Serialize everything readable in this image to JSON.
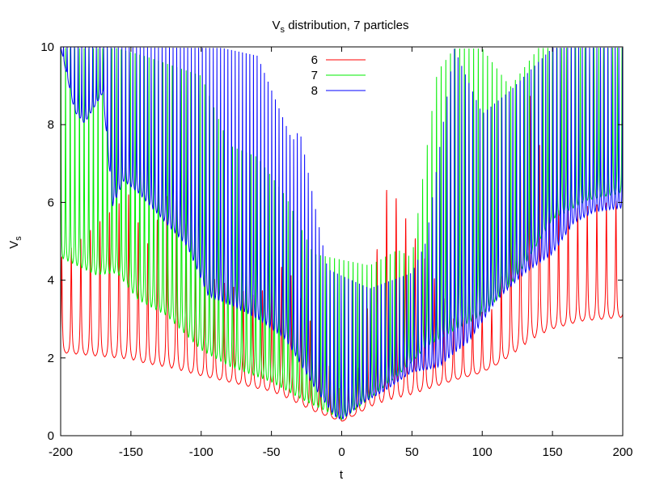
{
  "chart_data": {
    "type": "line",
    "title": {
      "main": "V",
      "sub": "s",
      "rest": " distribution, 7 particles"
    },
    "xlabel": "t",
    "ylabel": {
      "main": "V",
      "sub": "s"
    },
    "xlim": [
      -200,
      200
    ],
    "ylim": [
      0,
      10
    ],
    "xticks": [
      -200,
      -150,
      -100,
      -50,
      0,
      50,
      100,
      150,
      200
    ],
    "yticks": [
      0,
      2,
      4,
      6,
      8,
      10
    ],
    "grid": false,
    "legend_position": "top-center",
    "series": [
      {
        "name": "6",
        "color": "#ff0000",
        "baseline": [
          [
            -200,
            2.1
          ],
          [
            -150,
            1.9
          ],
          [
            -100,
            1.5
          ],
          [
            -50,
            1.1
          ],
          [
            -20,
            0.6
          ],
          [
            0,
            0.35
          ],
          [
            20,
            0.7
          ],
          [
            50,
            1.0
          ],
          [
            80,
            1.4
          ],
          [
            100,
            1.6
          ],
          [
            120,
            2.0
          ],
          [
            140,
            2.5
          ],
          [
            150,
            2.7
          ],
          [
            170,
            2.9
          ],
          [
            200,
            3.0
          ]
        ],
        "peaks": [
          [
            -200,
            4.6
          ],
          [
            -150,
            6.3
          ],
          [
            -140,
            4.8
          ],
          [
            -120,
            6.6
          ],
          [
            -100,
            4.2
          ],
          [
            -60,
            3.6
          ],
          [
            -40,
            4.5
          ],
          [
            0,
            1.05
          ],
          [
            10,
            1.4
          ],
          [
            33,
            6.6
          ],
          [
            80,
            3.0
          ],
          [
            110,
            3.3
          ],
          [
            134,
            8.8
          ],
          [
            150,
            5.8
          ],
          [
            170,
            5.9
          ],
          [
            200,
            6.1
          ]
        ]
      },
      {
        "name": "7",
        "color": "#00ee00",
        "baseline": [
          [
            -200,
            4.5
          ],
          [
            -175,
            4.05
          ],
          [
            -160,
            4.1
          ],
          [
            -145,
            3.4
          ],
          [
            -125,
            3.0
          ],
          [
            -100,
            2.1
          ],
          [
            -80,
            1.7
          ],
          [
            -50,
            1.3
          ],
          [
            -30,
            0.9
          ],
          [
            -10,
            0.55
          ],
          [
            0,
            0.35
          ],
          [
            20,
            0.9
          ],
          [
            40,
            1.5
          ],
          [
            60,
            2.2
          ],
          [
            80,
            2.6
          ],
          [
            100,
            3.0
          ],
          [
            120,
            3.8
          ],
          [
            130,
            4.3
          ],
          [
            150,
            5.5
          ],
          [
            175,
            6.0
          ],
          [
            200,
            6.2
          ]
        ],
        "peaks": [
          [
            -200,
            10
          ],
          [
            -160,
            10
          ],
          [
            -140,
            9.8
          ],
          [
            -100,
            9.3
          ],
          [
            -80,
            7.5
          ],
          [
            -60,
            7.2
          ],
          [
            -40,
            6.2
          ],
          [
            -20,
            4.7
          ],
          [
            20,
            4.4
          ],
          [
            40,
            4.8
          ],
          [
            50,
            4.6
          ],
          [
            68,
            9.4
          ],
          [
            80,
            10
          ],
          [
            100,
            10
          ],
          [
            120,
            9.0
          ],
          [
            140,
            10
          ],
          [
            200,
            10
          ]
        ]
      },
      {
        "name": "8",
        "color": "#0000ff",
        "baseline": [
          [
            -200,
            10
          ],
          [
            -190,
            8.3
          ],
          [
            -183,
            8.0
          ],
          [
            -170,
            8.8
          ],
          [
            -163,
            5.85
          ],
          [
            -155,
            6.5
          ],
          [
            -145,
            6.2
          ],
          [
            -130,
            5.6
          ],
          [
            -110,
            4.8
          ],
          [
            -95,
            3.5
          ],
          [
            -75,
            3.2
          ],
          [
            -55,
            2.8
          ],
          [
            -40,
            2.4
          ],
          [
            -20,
            1.2
          ],
          [
            -5,
            0.45
          ],
          [
            0,
            0.35
          ],
          [
            15,
            0.8
          ],
          [
            30,
            1.1
          ],
          [
            50,
            1.6
          ],
          [
            70,
            1.7
          ],
          [
            90,
            2.3
          ],
          [
            110,
            3.4
          ],
          [
            130,
            4.1
          ],
          [
            150,
            4.6
          ],
          [
            165,
            5.4
          ],
          [
            180,
            5.7
          ],
          [
            200,
            5.8
          ]
        ],
        "peaks": [
          [
            -200,
            10
          ],
          [
            -140,
            10
          ],
          [
            -100,
            10
          ],
          [
            -85,
            10
          ],
          [
            -60,
            9.8
          ],
          [
            -35,
            7.6
          ],
          [
            -30,
            7.9
          ],
          [
            -10,
            4.3
          ],
          [
            20,
            3.8
          ],
          [
            50,
            4.2
          ],
          [
            60,
            5.0
          ],
          [
            80,
            10
          ],
          [
            100,
            8.3
          ],
          [
            120,
            8.9
          ],
          [
            150,
            10
          ],
          [
            180,
            10
          ],
          [
            200,
            10
          ]
        ]
      }
    ]
  }
}
